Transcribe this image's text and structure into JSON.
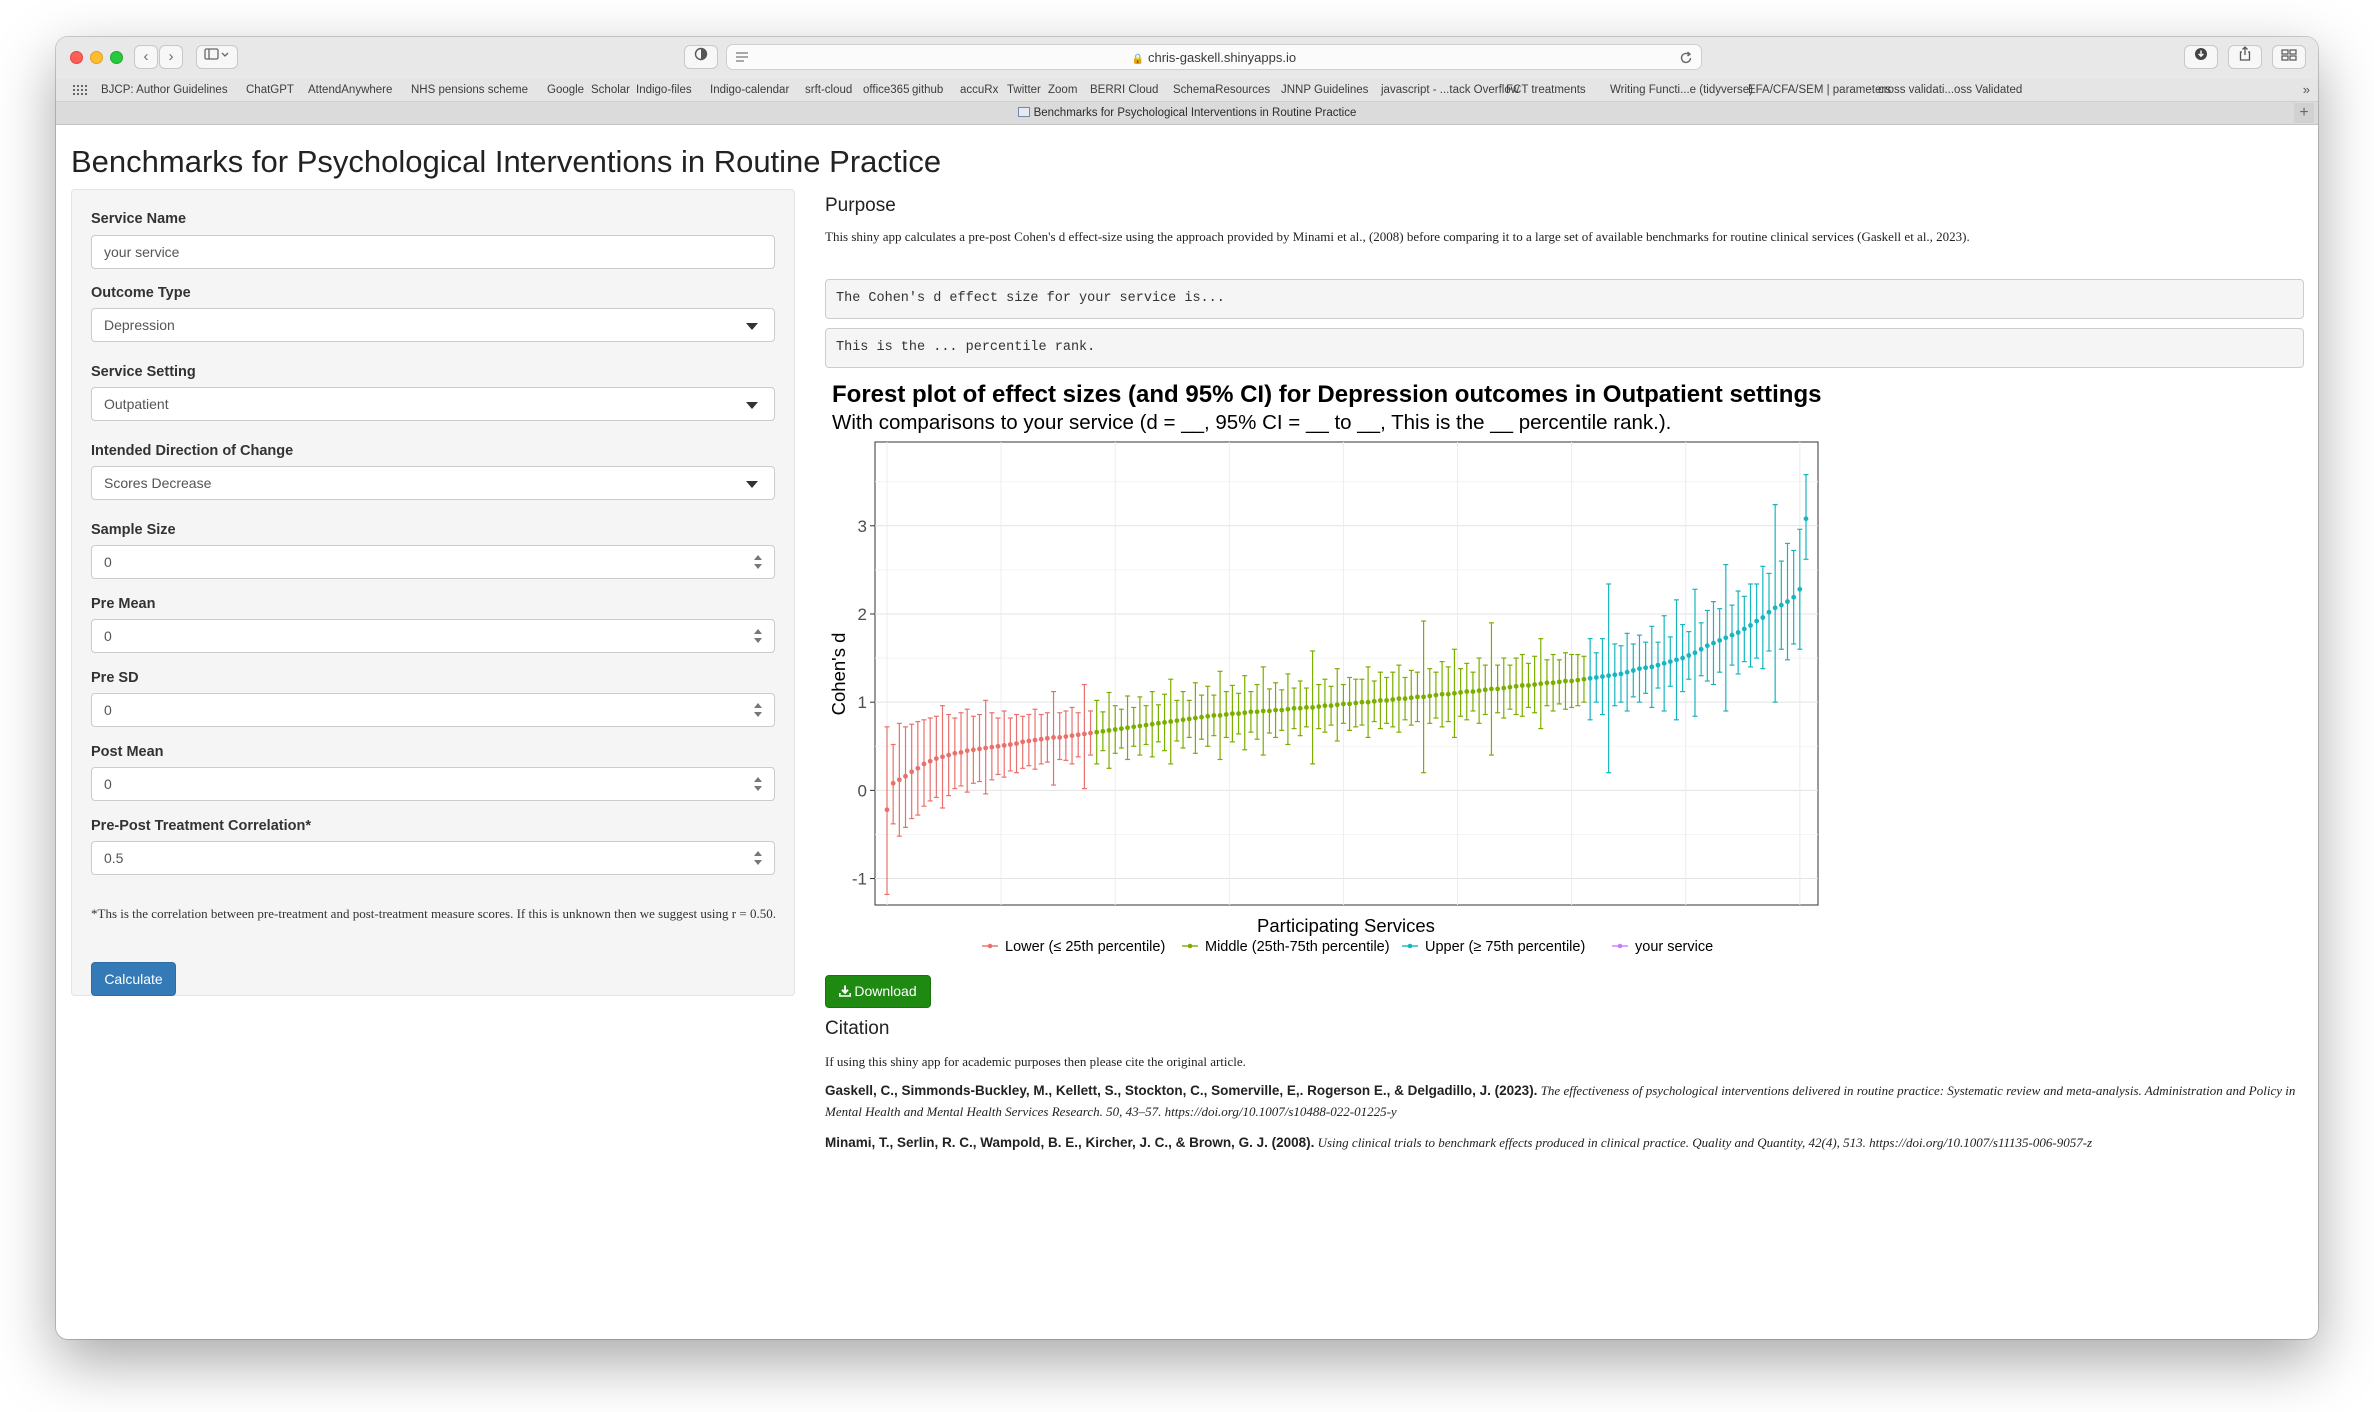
{
  "browser": {
    "url": "chris-gaskell.shinyapps.io",
    "tab_title": "Benchmarks for Psychological Interventions in Routine Practice",
    "bookmarks": [
      "BJCP: Author Guidelines",
      "ChatGPT",
      "AttendAnywhere",
      "NHS pensions scheme",
      "Google",
      "Scholar",
      "Indigo-files",
      "Indigo-calendar",
      "srft-cloud",
      "office365",
      "github",
      "accuRx",
      "Twitter",
      "Zoom",
      "BERRI Cloud",
      "SchemaResources",
      "JNNP Guidelines",
      "javascript - ...tack Overflow",
      "FCT treatments",
      "Writing Functi...e (tidyverse)",
      "EFA/CFA/SEM | parameters",
      "cross validati...oss Validated"
    ]
  },
  "app": {
    "title": "Benchmarks for Psychological Interventions in Routine Practice"
  },
  "sidebar": {
    "service_name": {
      "label": "Service Name",
      "value": "your service"
    },
    "outcome_type": {
      "label": "Outcome Type",
      "value": "Depression"
    },
    "service_setting": {
      "label": "Service Setting",
      "value": "Outpatient"
    },
    "direction": {
      "label": "Intended Direction of Change",
      "value": "Scores Decrease"
    },
    "sample_size": {
      "label": "Sample Size",
      "value": "0"
    },
    "pre_mean": {
      "label": "Pre Mean",
      "value": "0"
    },
    "pre_sd": {
      "label": "Pre SD",
      "value": "0"
    },
    "post_mean": {
      "label": "Post Mean",
      "value": "0"
    },
    "correlation": {
      "label": "Pre-Post Treatment Correlation*",
      "value": "0.5"
    },
    "footnote": "*Ths is the correlation between pre-treatment and post-treatment measure scores. If this is unknown then we suggest using r = 0.50.",
    "calculate_label": "Calculate"
  },
  "main": {
    "purpose_heading": "Purpose",
    "purpose_text": "This shiny app calculates a pre-post Cohen's d effect-size using the approach provided by Minami et al., (2008) before comparing it to a large set of available benchmarks for routine clinical services (Gaskell et al., 2023).",
    "effect_output": "The Cohen's d effect size for your service is...",
    "percentile_output": "This is the ... percentile rank.",
    "download_label": "Download",
    "citation_heading": "Citation",
    "citation_intro": "If using this shiny app for academic purposes then please cite the original article.",
    "citations": [
      {
        "authors": "Gaskell, C., Simmonds-Buckley, M., Kellett, S., Stockton, C., Somerville, E,. Rogerson E., & Delgadillo, J. (2023).",
        "rest": "The effectiveness of psychological interventions delivered in routine practice: Systematic review and meta-analysis. Administration and Policy in Mental Health and Mental Health Services Research. 50, 43–57. https://doi.org/10.1007/s10488-022-01225-y"
      },
      {
        "authors": "Minami, T., Serlin, R. C., Wampold, B. E., Kircher, J. C., & Brown, G. J. (2008).",
        "rest": "Using clinical trials to benchmark effects produced in clinical practice. Quality and Quantity, 42(4), 513. https://doi.org/10.1007/s11135-006-9057-z"
      }
    ]
  },
  "chart_data": {
    "type": "scatter",
    "title": "Forest plot of effect sizes (and 95% CI) for Depression outcomes in Outpatient settings",
    "subtitle": "With comparisons to your service (d = __, 95% CI = __ to __, This is the __ percentile rank.).",
    "xlabel": "Participating Services",
    "ylabel": "Cohen's d",
    "ylim": [
      -1.3,
      3.95
    ],
    "yticks": [
      -1,
      0,
      1,
      2,
      3
    ],
    "grid": true,
    "legend_position": "bottom",
    "colors": {
      "lower": "#e8716d",
      "middle": "#7cae00",
      "upper": "#17b5bf",
      "service": "#c77cff"
    },
    "series": [
      {
        "name": "Lower (≤ 25th percentile)",
        "key": "lower",
        "x": [
          1,
          2,
          3,
          4,
          5,
          6,
          7,
          8,
          9,
          10,
          11,
          12,
          13,
          14,
          15,
          16,
          17,
          18,
          19,
          20,
          21,
          22,
          23,
          24,
          25,
          26,
          27,
          28,
          29,
          30,
          31,
          32,
          33,
          34
        ],
        "y": [
          -0.22,
          0.08,
          0.12,
          0.16,
          0.21,
          0.25,
          0.3,
          0.33,
          0.36,
          0.38,
          0.4,
          0.42,
          0.43,
          0.45,
          0.46,
          0.47,
          0.48,
          0.49,
          0.5,
          0.51,
          0.52,
          0.53,
          0.55,
          0.56,
          0.57,
          0.58,
          0.59,
          0.6,
          0.6,
          0.61,
          0.62,
          0.63,
          0.64,
          0.65
        ],
        "lo": [
          -1.18,
          -0.38,
          -0.52,
          -0.42,
          -0.32,
          -0.28,
          -0.18,
          -0.12,
          -0.08,
          -0.2,
          -0.06,
          0.02,
          0.05,
          -0.02,
          0.08,
          0.1,
          -0.04,
          0.12,
          0.18,
          0.15,
          0.22,
          0.2,
          0.25,
          0.28,
          0.24,
          0.3,
          0.32,
          0.06,
          0.35,
          0.34,
          0.3,
          0.38,
          0.02,
          0.4
        ],
        "hi": [
          0.72,
          0.52,
          0.76,
          0.72,
          0.75,
          0.78,
          0.8,
          0.82,
          0.84,
          0.96,
          0.86,
          0.82,
          0.88,
          0.92,
          0.84,
          0.86,
          1.02,
          0.88,
          0.82,
          0.9,
          0.82,
          0.86,
          0.84,
          0.86,
          0.92,
          0.86,
          0.88,
          1.12,
          0.88,
          0.9,
          0.94,
          0.88,
          1.2,
          0.9
        ]
      },
      {
        "name": "Middle (25th-75th percentile)",
        "key": "middle",
        "x": [
          35,
          36,
          37,
          38,
          39,
          40,
          41,
          42,
          43,
          44,
          45,
          46,
          47,
          48,
          49,
          50,
          51,
          52,
          53,
          54,
          55,
          56,
          57,
          58,
          59,
          60,
          61,
          62,
          63,
          64,
          65,
          66,
          67,
          68,
          69,
          70,
          71,
          72,
          73,
          74,
          75,
          76,
          77,
          78,
          79,
          80,
          81,
          82,
          83,
          84,
          85,
          86,
          87,
          88,
          89,
          90,
          91,
          92,
          93,
          94,
          95,
          96,
          97,
          98,
          99,
          100,
          101,
          102,
          103,
          104,
          105,
          106,
          107,
          108,
          109,
          110,
          111,
          112,
          113,
          114
        ],
        "y": [
          0.66,
          0.67,
          0.68,
          0.69,
          0.7,
          0.71,
          0.72,
          0.73,
          0.74,
          0.75,
          0.76,
          0.77,
          0.78,
          0.79,
          0.8,
          0.81,
          0.82,
          0.83,
          0.84,
          0.85,
          0.85,
          0.86,
          0.87,
          0.87,
          0.88,
          0.89,
          0.89,
          0.9,
          0.9,
          0.91,
          0.91,
          0.92,
          0.93,
          0.93,
          0.94,
          0.94,
          0.95,
          0.96,
          0.96,
          0.97,
          0.98,
          0.98,
          0.99,
          1.0,
          1.0,
          1.01,
          1.02,
          1.02,
          1.03,
          1.04,
          1.04,
          1.05,
          1.06,
          1.06,
          1.07,
          1.08,
          1.09,
          1.09,
          1.1,
          1.11,
          1.12,
          1.12,
          1.13,
          1.14,
          1.15,
          1.15,
          1.16,
          1.17,
          1.18,
          1.19,
          1.19,
          1.2,
          1.21,
          1.22,
          1.22,
          1.23,
          1.24,
          1.24,
          1.25,
          1.26
        ],
        "lo": [
          0.3,
          0.45,
          0.25,
          0.42,
          0.48,
          0.35,
          0.5,
          0.4,
          0.52,
          0.38,
          0.55,
          0.45,
          0.3,
          0.56,
          0.48,
          0.6,
          0.42,
          0.58,
          0.5,
          0.62,
          0.35,
          0.6,
          0.55,
          0.64,
          0.46,
          0.66,
          0.58,
          0.4,
          0.65,
          0.6,
          0.68,
          0.52,
          0.7,
          0.62,
          0.72,
          0.3,
          0.7,
          0.66,
          0.74,
          0.56,
          0.76,
          0.68,
          0.72,
          0.74,
          0.6,
          0.78,
          0.7,
          0.76,
          0.72,
          0.66,
          0.8,
          0.74,
          0.78,
          0.2,
          0.76,
          0.82,
          0.72,
          0.78,
          0.6,
          0.84,
          0.8,
          0.9,
          0.76,
          0.86,
          0.4,
          0.88,
          0.82,
          0.92,
          0.86,
          0.84,
          0.94,
          0.88,
          0.7,
          0.96,
          0.9,
          0.98,
          0.92,
          0.94,
          0.96,
          1.0
        ],
        "hi": [
          1.02,
          0.89,
          1.11,
          0.96,
          0.92,
          1.07,
          0.94,
          1.06,
          0.96,
          1.12,
          0.97,
          1.09,
          1.26,
          1.02,
          1.12,
          1.02,
          1.22,
          1.08,
          1.18,
          1.08,
          1.35,
          1.12,
          1.19,
          1.1,
          1.3,
          1.12,
          1.2,
          1.4,
          1.15,
          1.22,
          1.14,
          1.32,
          1.16,
          1.24,
          1.16,
          1.58,
          1.2,
          1.26,
          1.18,
          1.38,
          1.2,
          1.28,
          1.26,
          1.26,
          1.4,
          1.24,
          1.34,
          1.28,
          1.34,
          1.42,
          1.28,
          1.36,
          1.34,
          1.92,
          1.38,
          1.34,
          1.46,
          1.4,
          1.6,
          1.38,
          1.44,
          1.34,
          1.5,
          1.42,
          1.9,
          1.42,
          1.5,
          1.42,
          1.5,
          1.54,
          1.44,
          1.52,
          1.72,
          1.48,
          1.54,
          1.48,
          1.56,
          1.54,
          1.54,
          1.52
        ]
      },
      {
        "name": "Upper (≥ 75th percentile)",
        "key": "upper",
        "x": [
          115,
          116,
          117,
          118,
          119,
          120,
          121,
          122,
          123,
          124,
          125,
          126,
          127,
          128,
          129,
          130,
          131,
          132,
          133,
          134,
          135,
          136,
          137,
          138,
          139,
          140,
          141,
          142,
          143,
          144,
          145,
          146,
          147,
          148,
          149,
          150
        ],
        "y": [
          1.27,
          1.28,
          1.29,
          1.3,
          1.31,
          1.32,
          1.34,
          1.36,
          1.38,
          1.39,
          1.4,
          1.42,
          1.44,
          1.46,
          1.48,
          1.5,
          1.53,
          1.56,
          1.6,
          1.64,
          1.67,
          1.7,
          1.73,
          1.76,
          1.79,
          1.83,
          1.87,
          1.92,
          1.96,
          2.02,
          2.07,
          2.1,
          2.14,
          2.19,
          2.28,
          3.08
        ],
        "lo": [
          0.8,
          1.0,
          0.86,
          0.2,
          0.96,
          1.0,
          0.9,
          1.06,
          1.0,
          1.1,
          0.94,
          1.16,
          0.9,
          1.18,
          0.8,
          1.12,
          1.26,
          0.84,
          1.3,
          1.24,
          1.2,
          1.34,
          0.9,
          1.42,
          1.32,
          1.46,
          1.4,
          1.5,
          1.38,
          1.58,
          1.0,
          1.6,
          1.48,
          1.66,
          1.6,
          2.62
        ],
        "hi": [
          1.72,
          1.56,
          1.72,
          2.34,
          1.66,
          1.64,
          1.78,
          1.66,
          1.76,
          1.68,
          1.86,
          1.68,
          1.98,
          1.74,
          2.16,
          1.88,
          1.8,
          2.28,
          1.9,
          2.04,
          2.14,
          2.06,
          2.56,
          2.1,
          2.26,
          2.2,
          2.34,
          2.34,
          2.54,
          2.46,
          3.24,
          2.6,
          2.8,
          2.72,
          2.96,
          3.58
        ]
      },
      {
        "name": "your service",
        "key": "service",
        "x": [],
        "y": [],
        "lo": [],
        "hi": []
      }
    ]
  }
}
